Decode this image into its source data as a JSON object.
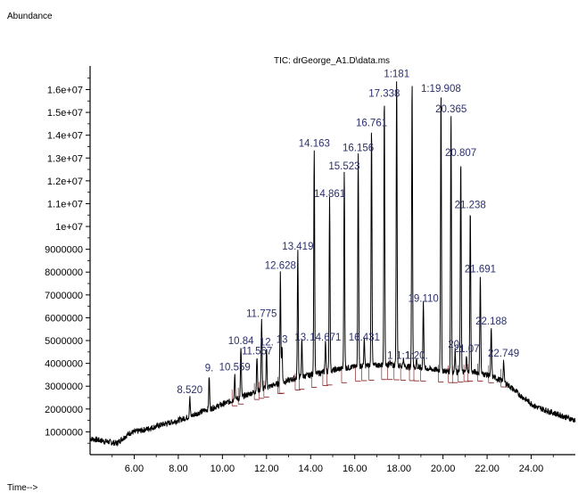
{
  "chart_data": {
    "type": "line",
    "title": "TIC: drGeorge_A1.D\\data.ms",
    "ylabel": "Abundance",
    "xlabel": "Time-->",
    "xlim": [
      4.0,
      26.0
    ],
    "ylim": [
      0,
      16800000
    ],
    "grid": false,
    "x_ticks": [
      "6.00",
      "8.00",
      "10.00",
      "12.00",
      "14.00",
      "16.00",
      "18.00",
      "20.00",
      "22.00",
      "24.00"
    ],
    "x_tick_values": [
      6,
      8,
      10,
      12,
      14,
      16,
      18,
      20,
      22,
      24
    ],
    "y_ticks": [
      "1000000",
      "2000000",
      "3000000",
      "4000000",
      "5000000",
      "6000000",
      "7000000",
      "8000000",
      "9000000",
      "1e+07",
      "1.1e+07",
      "1.2e+07",
      "1.3e+07",
      "1.4e+07",
      "1.5e+07",
      "1.6e+07"
    ],
    "y_tick_values": [
      1000000,
      2000000,
      3000000,
      4000000,
      5000000,
      6000000,
      7000000,
      8000000,
      9000000,
      10000000,
      11000000,
      12000000,
      13000000,
      14000000,
      15000000,
      16000000
    ],
    "baseline": [
      [
        4.0,
        700000
      ],
      [
        4.6,
        600000
      ],
      [
        5.2,
        500000
      ],
      [
        5.8,
        950000
      ],
      [
        6.5,
        1100000
      ],
      [
        7.2,
        1300000
      ],
      [
        8.0,
        1500000
      ],
      [
        8.6,
        1700000
      ],
      [
        9.2,
        1950000
      ],
      [
        9.8,
        2100000
      ],
      [
        10.6,
        2300000
      ],
      [
        11.5,
        2550000
      ],
      [
        12.5,
        2800000
      ],
      [
        13.5,
        3000000
      ],
      [
        14.5,
        3150000
      ],
      [
        15.5,
        3300000
      ],
      [
        16.5,
        3400000
      ],
      [
        17.5,
        3450000
      ],
      [
        18.5,
        3400000
      ],
      [
        19.5,
        3350000
      ],
      [
        20.5,
        3300000
      ],
      [
        21.5,
        3400000
      ],
      [
        22.2,
        3300000
      ],
      [
        22.8,
        3100000
      ],
      [
        23.5,
        2600000
      ],
      [
        24.2,
        2100000
      ],
      [
        24.8,
        1900000
      ],
      [
        25.4,
        1700000
      ],
      [
        26.0,
        1500000
      ]
    ],
    "peaks": [
      {
        "x": 8.52,
        "y": 2500000,
        "label": "8.520"
      },
      {
        "x": 9.4,
        "y": 3450000,
        "label": "9."
      },
      {
        "x": 10.559,
        "y": 3500000,
        "label": "10.559"
      },
      {
        "x": 10.84,
        "y": 4650000,
        "label": "10.84"
      },
      {
        "x": 11.567,
        "y": 4200000,
        "label": "11.567"
      },
      {
        "x": 11.775,
        "y": 5850000,
        "label": "11.775"
      },
      {
        "x": 12.0,
        "y": 4600000,
        "label": "12."
      },
      {
        "x": 12.628,
        "y": 7950000,
        "label": "12.628"
      },
      {
        "x": 12.7,
        "y": 4700000,
        "label": "13"
      },
      {
        "x": 13.419,
        "y": 8800000,
        "label": "13.419"
      },
      {
        "x": 13.6,
        "y": 4800000,
        "label": "13."
      },
      {
        "x": 14.163,
        "y": 13300000,
        "label": "14.163"
      },
      {
        "x": 14.671,
        "y": 4800000,
        "label": "14.671"
      },
      {
        "x": 14.861,
        "y": 11100000,
        "label": "14.861"
      },
      {
        "x": 15.523,
        "y": 12300000,
        "label": "15.523"
      },
      {
        "x": 16.156,
        "y": 13100000,
        "label": "16.156"
      },
      {
        "x": 16.431,
        "y": 4800000,
        "label": "16.431"
      },
      {
        "x": 16.761,
        "y": 14200000,
        "label": "16.761"
      },
      {
        "x": 17.338,
        "y": 15500000,
        "label": "17.338"
      },
      {
        "x": 17.6,
        "y": 4000000,
        "label": "1"
      },
      {
        "x": 17.9,
        "y": 16350000,
        "label": "1:181"
      },
      {
        "x": 18.2,
        "y": 4000000,
        "label": "1:1"
      },
      {
        "x": 18.6,
        "y": 16350000,
        "label": ""
      },
      {
        "x": 18.8,
        "y": 4000000,
        "label": "1:20."
      },
      {
        "x": 19.11,
        "y": 6500000,
        "label": "19.110"
      },
      {
        "x": 19.908,
        "y": 15700000,
        "label": "1:19.908"
      },
      {
        "x": 20.365,
        "y": 14800000,
        "label": "20.365"
      },
      {
        "x": 20.55,
        "y": 4500000,
        "label": "20."
      },
      {
        "x": 20.807,
        "y": 12900000,
        "label": "20.807"
      },
      {
        "x": 21.07,
        "y": 4300000,
        "label": "21.07"
      },
      {
        "x": 21.238,
        "y": 10600000,
        "label": "21.238"
      },
      {
        "x": 21.691,
        "y": 7800000,
        "label": "21.691"
      },
      {
        "x": 22.188,
        "y": 5500000,
        "label": "22.188"
      },
      {
        "x": 22.749,
        "y": 4100000,
        "label": "22.749"
      }
    ]
  }
}
